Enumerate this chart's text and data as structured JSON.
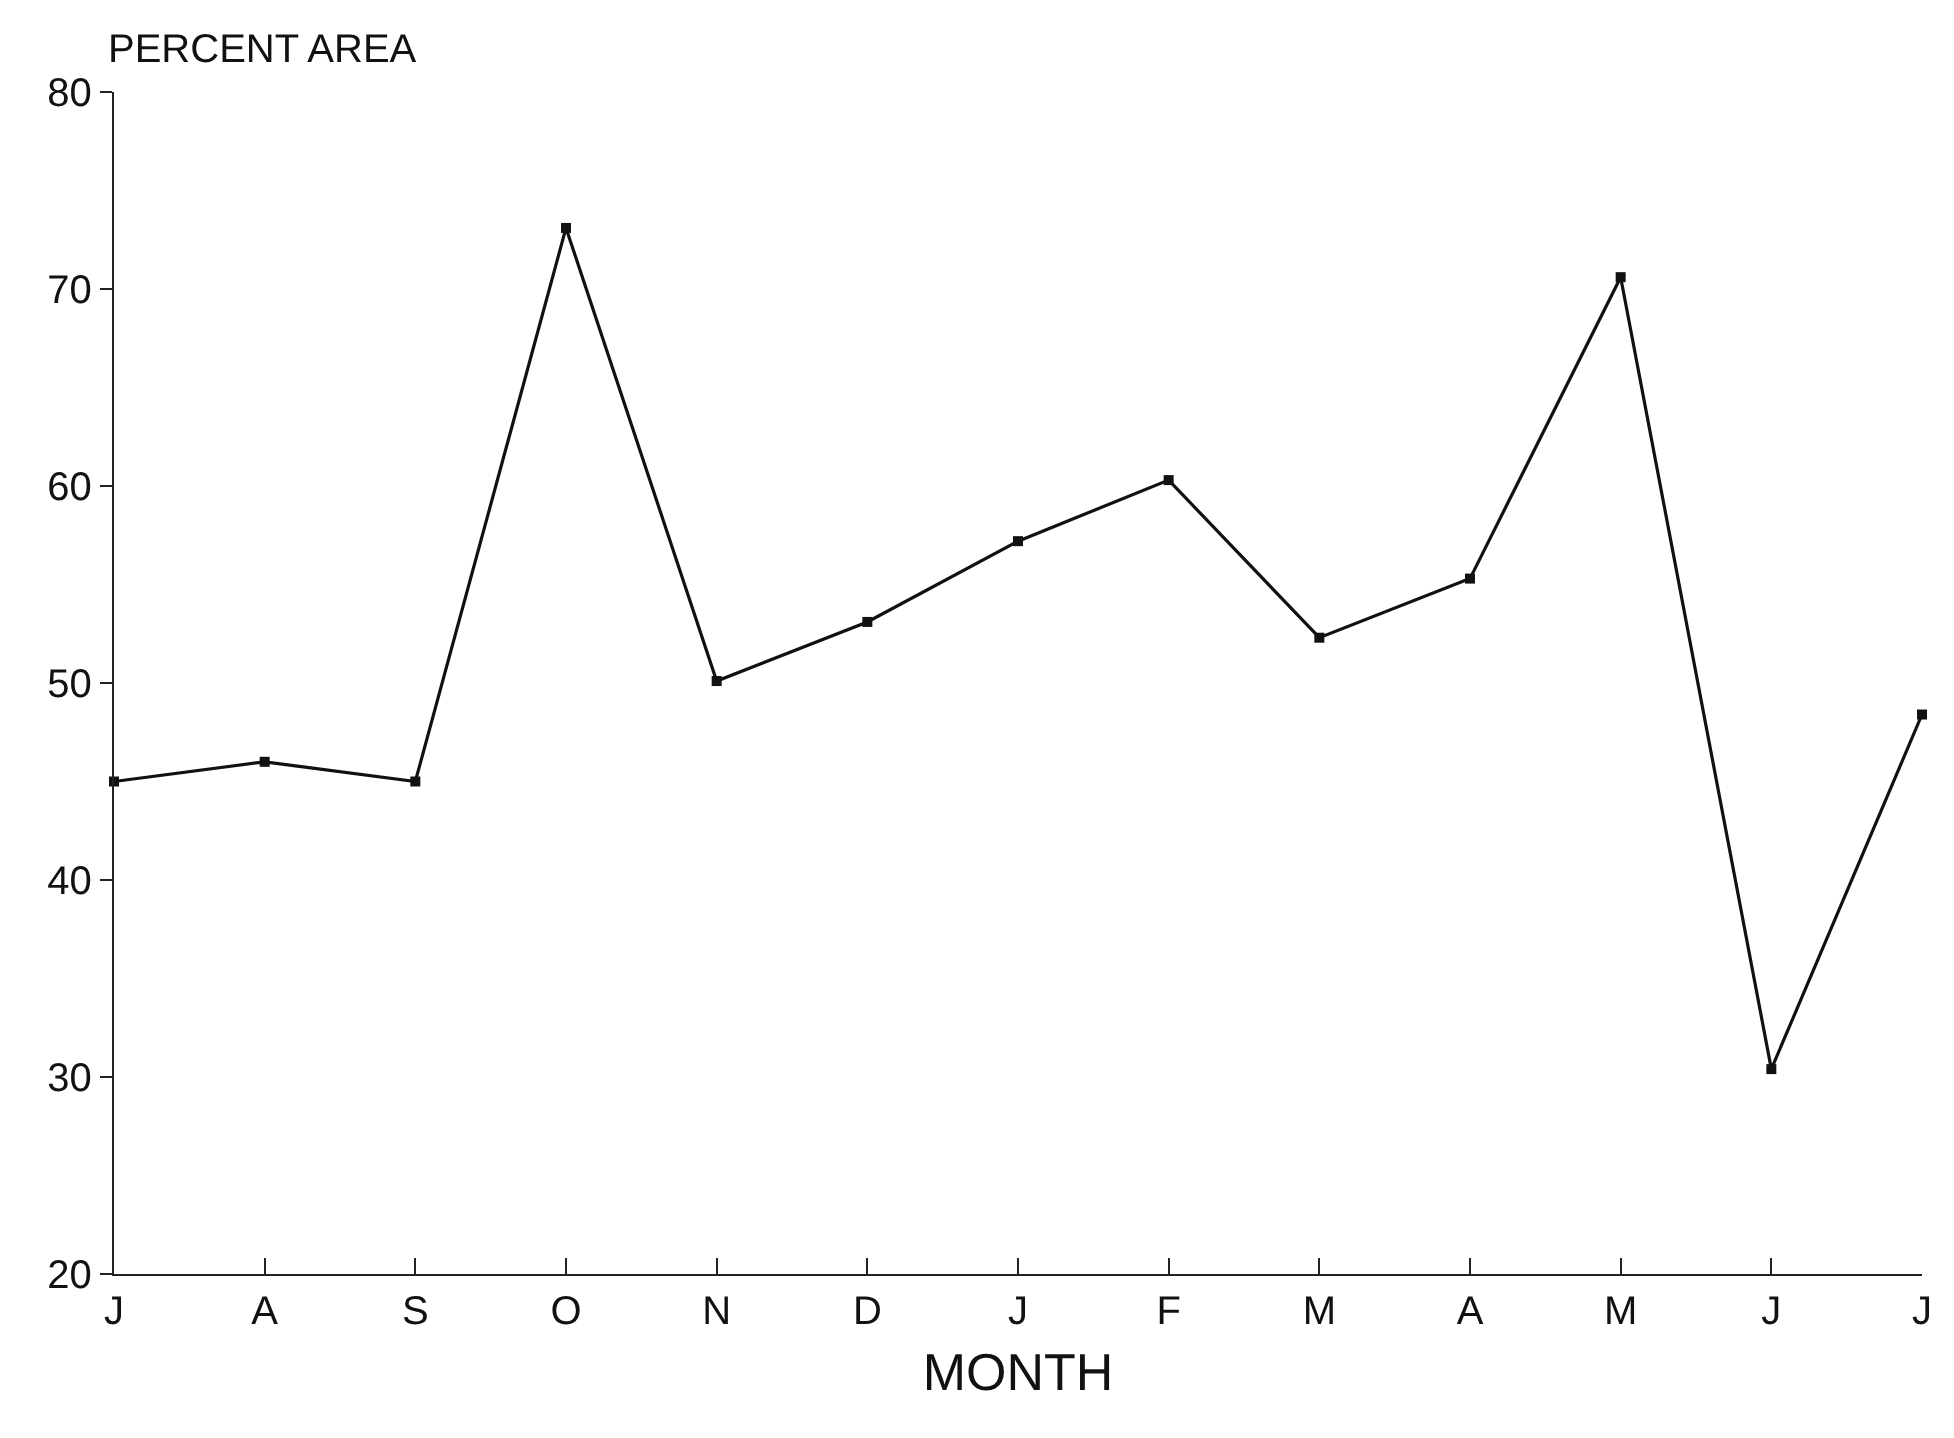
{
  "chart_data": {
    "type": "line",
    "ylabel": "PERCENT AREA",
    "xlabel": "MONTH",
    "categories": [
      "J",
      "A",
      "S",
      "O",
      "N",
      "D",
      "J",
      "F",
      "M",
      "A",
      "M",
      "J",
      "J"
    ],
    "values": [
      45,
      46,
      45,
      73.1,
      50.1,
      53.1,
      57.2,
      60.3,
      52.3,
      55.3,
      70.6,
      30.4,
      48.4
    ],
    "color": "#111111",
    "marker": "square",
    "line_style": "solid",
    "grid": false,
    "ylim": [
      20,
      80
    ],
    "yticks": [
      20,
      30,
      40,
      50,
      60,
      70,
      80
    ]
  }
}
